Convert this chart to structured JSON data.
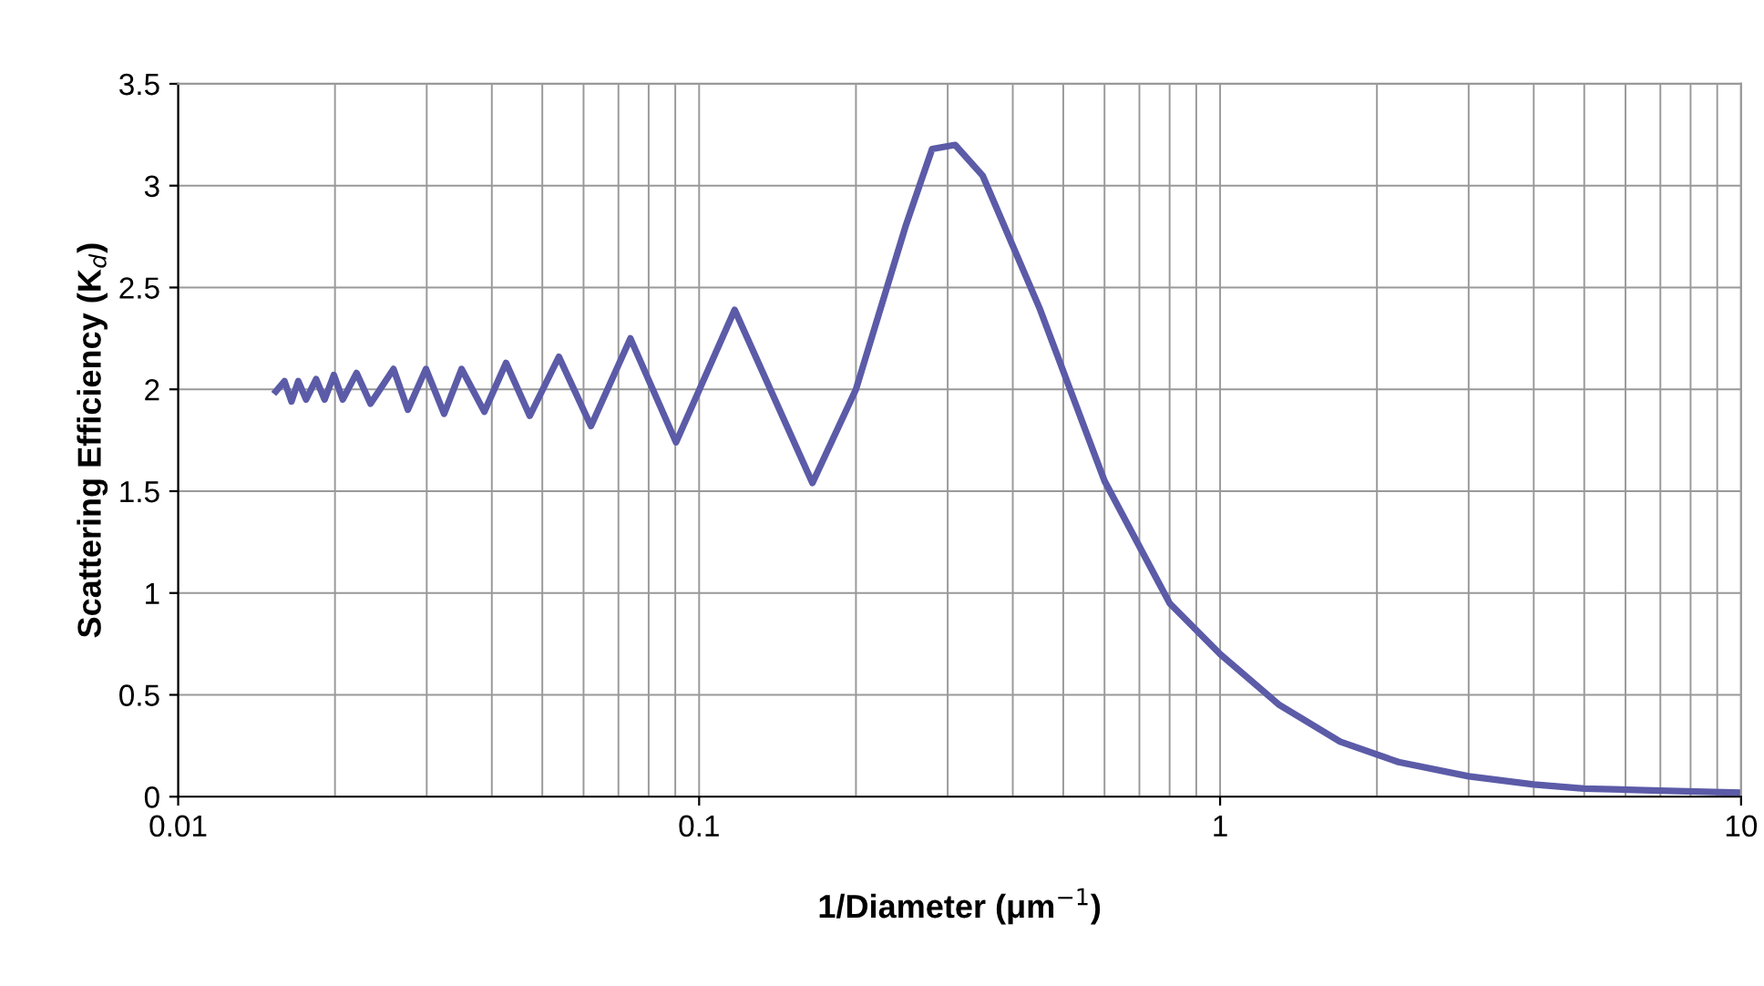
{
  "chart_data": {
    "type": "line",
    "xlabel": "1/Diameter (μm$^{−1}$)",
    "ylabel": "Scattering Efficiency (K$_{d}$)",
    "x": [
      0.0154,
      0.016,
      0.0165,
      0.017,
      0.0176,
      0.0184,
      0.0191,
      0.0199,
      0.0207,
      0.022,
      0.0234,
      0.0259,
      0.0276,
      0.0299,
      0.0324,
      0.035,
      0.0387,
      0.0426,
      0.0473,
      0.0538,
      0.062,
      0.0738,
      0.0903,
      0.117,
      0.165,
      0.2,
      0.249,
      0.28,
      0.31,
      0.35,
      0.45,
      0.6,
      0.8,
      1.0,
      1.3,
      1.7,
      2.2,
      3.0,
      4.0,
      5.0,
      7.0,
      10
    ],
    "series": [
      {
        "color": "#5b5ba8",
        "values": [
          1.99,
          2.04,
          1.94,
          2.04,
          1.95,
          2.05,
          1.95,
          2.07,
          1.95,
          2.08,
          1.93,
          2.1,
          1.9,
          2.1,
          1.88,
          2.1,
          1.89,
          2.13,
          1.87,
          2.16,
          1.82,
          2.25,
          1.74,
          2.39,
          1.54,
          2.0,
          2.8,
          3.18,
          3.2,
          3.05,
          2.4,
          1.55,
          0.95,
          0.7,
          0.45,
          0.27,
          0.17,
          0.1,
          0.06,
          0.04,
          0.03,
          0.02
        ]
      }
    ],
    "log": "x",
    "xlim": [
      0.01,
      10
    ],
    "xticks": [
      0.01,
      0.1,
      1,
      10
    ],
    "ylim": [
      0,
      3.5
    ],
    "yticks": [
      0,
      0.5,
      1,
      1.5,
      2,
      2.5,
      3,
      3.5
    ],
    "grid": true,
    "marker": "none",
    "line_style": "solid",
    "legend": false
  }
}
